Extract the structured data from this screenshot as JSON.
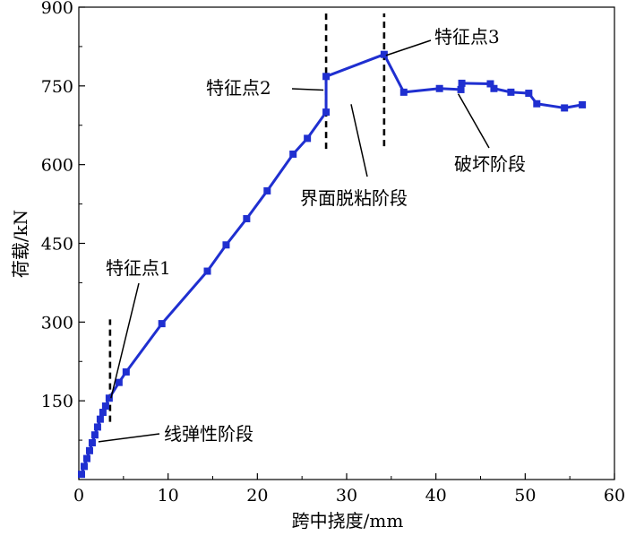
{
  "chart_data": {
    "type": "line",
    "title": "",
    "xlabel": "跨中挠度/mm",
    "ylabel": "荷载/kN",
    "xlim": [
      0,
      60
    ],
    "ylim": [
      0,
      900
    ],
    "xticks": [
      0,
      10,
      20,
      30,
      40,
      50,
      60
    ],
    "yticks": [
      150,
      300,
      450,
      600,
      750,
      900
    ],
    "grid": false,
    "line_color": "#1f2fd0",
    "series": [
      {
        "name": "",
        "points": [
          [
            0.3,
            10
          ],
          [
            0.6,
            25
          ],
          [
            0.9,
            40
          ],
          [
            1.2,
            55
          ],
          [
            1.5,
            70
          ],
          [
            1.8,
            85
          ],
          [
            2.1,
            100
          ],
          [
            2.4,
            115
          ],
          [
            2.7,
            128
          ],
          [
            3.0,
            140
          ],
          [
            3.4,
            155
          ],
          [
            4.5,
            185
          ],
          [
            5.3,
            205
          ],
          [
            9.3,
            297
          ],
          [
            14.4,
            397
          ],
          [
            16.5,
            447
          ],
          [
            18.8,
            497
          ],
          [
            21.1,
            550
          ],
          [
            24.0,
            620
          ],
          [
            25.6,
            650
          ],
          [
            27.7,
            700
          ],
          [
            27.7,
            768
          ],
          [
            34.2,
            810
          ],
          [
            36.4,
            738
          ],
          [
            40.4,
            745
          ],
          [
            42.8,
            743
          ],
          [
            42.9,
            755
          ],
          [
            46.1,
            754
          ],
          [
            46.5,
            745
          ],
          [
            48.4,
            738
          ],
          [
            50.4,
            736
          ],
          [
            51.3,
            716
          ],
          [
            54.4,
            708
          ],
          [
            56.4,
            714
          ]
        ]
      }
    ],
    "dashed_lines": [
      {
        "x": 3.5,
        "y_range": [
          110,
          305
        ]
      },
      {
        "x": 27.7,
        "y_range": [
          630,
          888
        ]
      },
      {
        "x": 34.2,
        "y_range": [
          635,
          888
        ]
      }
    ],
    "annotations": [
      {
        "text": "特征点1",
        "leader_to": [
          3.6,
          155
        ]
      },
      {
        "text": "线弹性阶段",
        "leader_to": [
          2.2,
          72
        ]
      },
      {
        "text": "特征点2",
        "leader_to": [
          27.4,
          742
        ]
      },
      {
        "text": "界面脱粘阶段",
        "leader_to": [
          30.5,
          715
        ]
      },
      {
        "text": "特征点3",
        "leader_to": [
          34.4,
          808
        ]
      },
      {
        "text": "破坏阶段",
        "leader_to": [
          42.5,
          735
        ]
      }
    ]
  }
}
